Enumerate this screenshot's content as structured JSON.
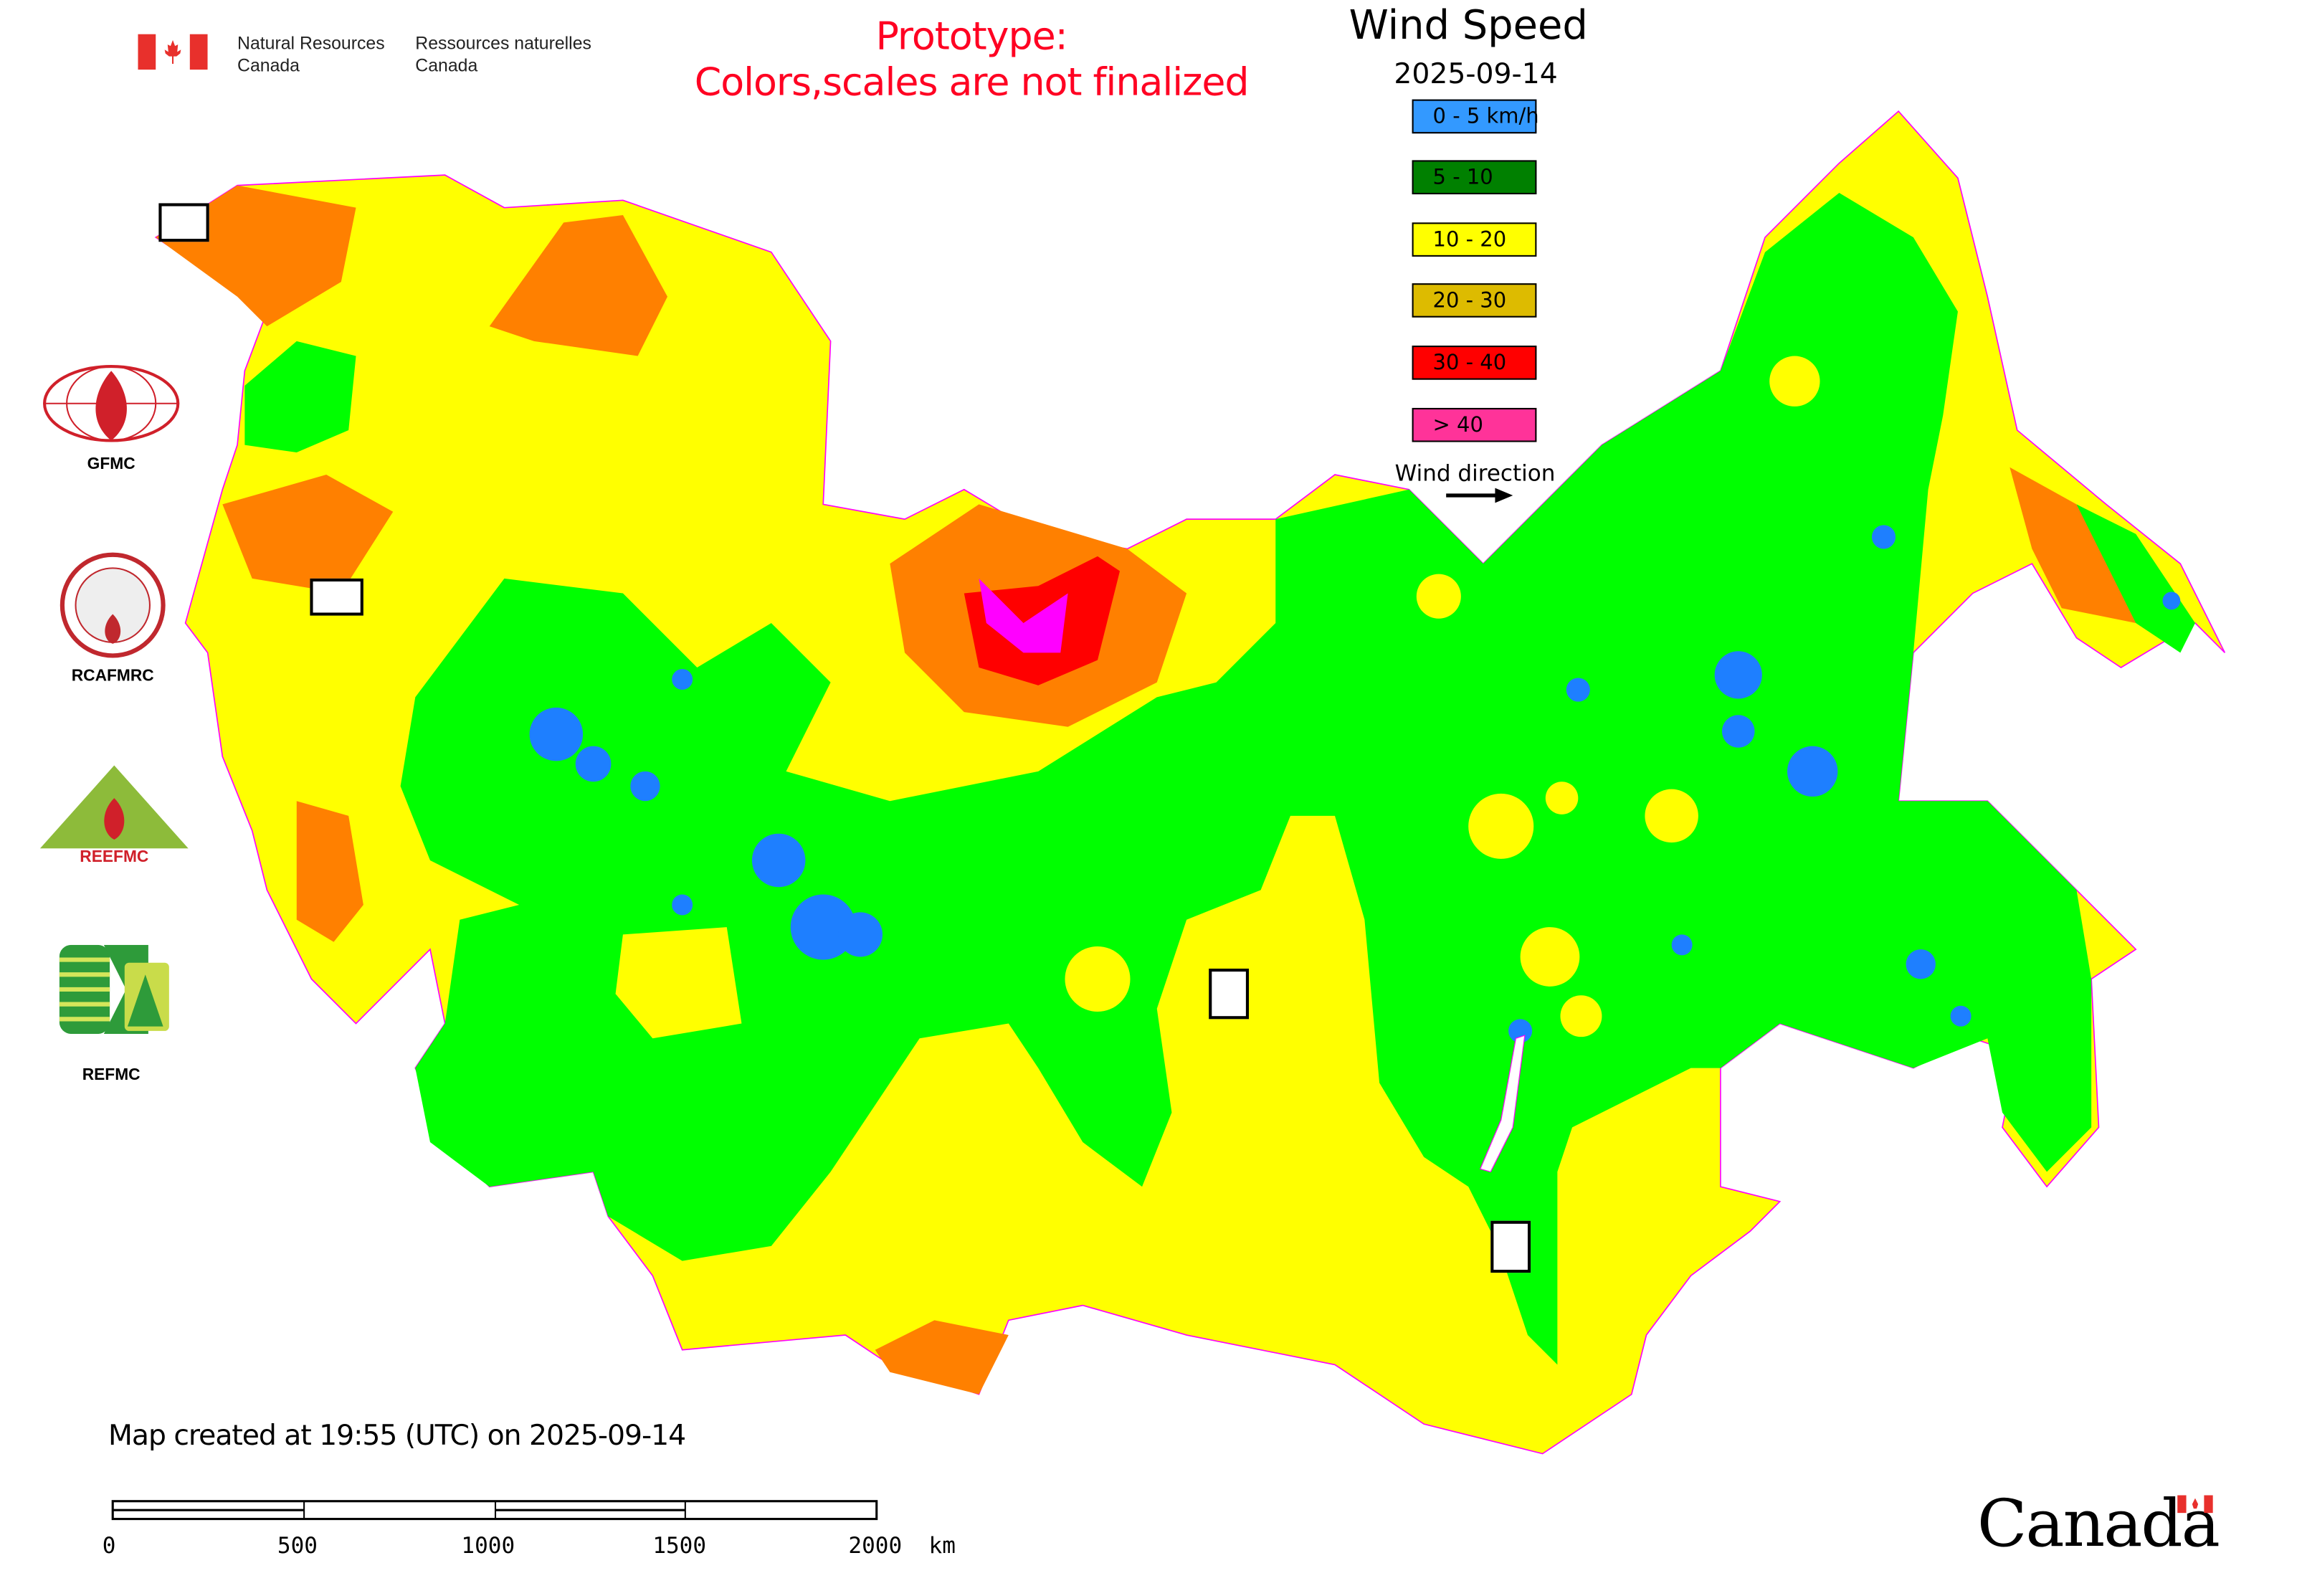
{
  "header": {
    "agency_en_line1": "Natural Resources",
    "agency_en_line2": "Canada",
    "agency_fr_line1": "Ressources naturelles",
    "agency_fr_line2": "Canada",
    "prototype_line1": "Prototype:",
    "prototype_line2": "Colors,scales are not finalized",
    "prototype_color": "#ff0022"
  },
  "legend": {
    "title": "Wind Speed",
    "date": "2025-09-14",
    "items": [
      {
        "label": "0 - 5 km/h",
        "color": "#3399ff"
      },
      {
        "label": "5 - 10",
        "color": "#008000"
      },
      {
        "label": "10 - 20",
        "color": "#ffff00"
      },
      {
        "label": "20 - 30",
        "color": "#ddbb00"
      },
      {
        "label": "30 - 40",
        "color": "#ff0000"
      },
      {
        "label": "> 40",
        "color": "#ff3399"
      }
    ],
    "wind_direction_label": "Wind direction"
  },
  "map_colors": {
    "calm": "#1e7fff",
    "light": "#00ff00",
    "moderate": "#ffff00",
    "strong": "#ff8000",
    "very_strong": "#ff0000",
    "extreme": "#ff00ff",
    "border": "#ff00ff"
  },
  "side_logos": [
    {
      "label": "GFMC"
    },
    {
      "label": "RCAFMRC"
    },
    {
      "label": "REEFMC"
    },
    {
      "label": "REFMC"
    }
  ],
  "footer": {
    "created": "Map created at 19:55 (UTC) on 2025-09-14",
    "scale_labels": [
      "0",
      "500",
      "1000",
      "1500",
      "2000  km"
    ],
    "wordmark": "Canada"
  }
}
